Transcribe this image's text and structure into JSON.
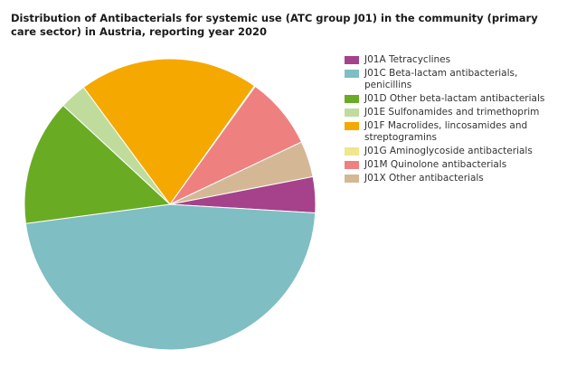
{
  "chart_data": {
    "type": "pie",
    "title": "Distribution of Antibacterials for systemic use (ATC group J01) in the community (primary care sector) in Austria, reporting year 2020",
    "legend_position": "right",
    "slices": [
      {
        "label": "J01A Tetracyclines",
        "value": 4.0,
        "color": "#a5428b"
      },
      {
        "label": "J01C Beta-lactam antibacterials, penicillins",
        "value": 47.0,
        "color": "#7fbec3"
      },
      {
        "label": "J01D Other beta-lactam antibacterials",
        "value": 14.0,
        "color": "#6aab24"
      },
      {
        "label": "J01E Sulfonamides and trimethoprim",
        "value": 3.0,
        "color": "#c0dc9c"
      },
      {
        "label": "J01F Macrolides, lincosamides and streptogramins",
        "value": 20.0,
        "color": "#f5a800"
      },
      {
        "label": "J01G Aminoglycoside antibacterials",
        "value": 0.1,
        "color": "#f0e68c"
      },
      {
        "label": "J01M Quinolone antibacterials",
        "value": 8.0,
        "color": "#ef8080"
      },
      {
        "label": "J01X Other antibacterials",
        "value": 4.0,
        "color": "#d4b895"
      }
    ]
  }
}
